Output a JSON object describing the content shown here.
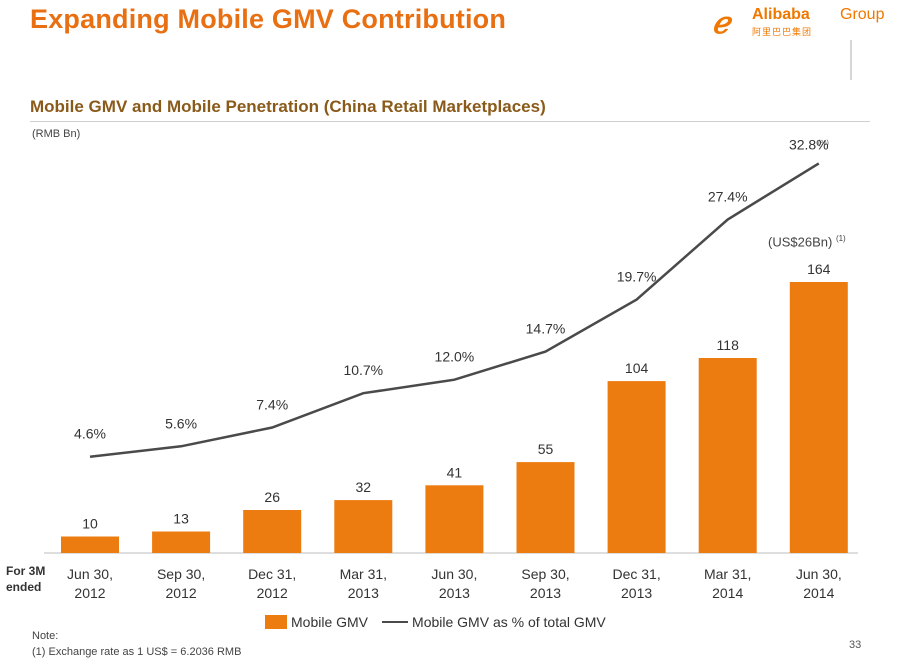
{
  "slide": {
    "title": "Expanding Mobile GMV Contribution",
    "page_number": "33",
    "logo_name": "Alibaba",
    "logo_group": "Group",
    "logo_sub": "阿里巴巴集团"
  },
  "chart_data": {
    "type": "bar",
    "title": "Mobile GMV and Mobile Penetration (China Retail Marketplaces)",
    "ylabel": "(RMB Bn)",
    "y2label": "(%)",
    "x_prefix": "For 3M ended",
    "categories": [
      [
        "Jun 30,",
        "2012"
      ],
      [
        "Sep 30,",
        "2012"
      ],
      [
        "Dec 31,",
        "2012"
      ],
      [
        "Mar 31,",
        "2013"
      ],
      [
        "Jun 30,",
        "2013"
      ],
      [
        "Sep 30,",
        "2013"
      ],
      [
        "Dec 31,",
        "2013"
      ],
      [
        "Mar 31,",
        "2014"
      ],
      [
        "Jun 30,",
        "2014"
      ]
    ],
    "series": [
      {
        "name": "Mobile GMV",
        "type": "bar",
        "values": [
          10,
          13,
          26,
          32,
          41,
          55,
          104,
          118,
          164
        ],
        "color": "#ec7c10"
      },
      {
        "name": "Mobile GMV as % of total GMV",
        "type": "line",
        "values": [
          4.6,
          5.6,
          7.4,
          10.7,
          12.0,
          14.7,
          19.7,
          27.4,
          32.8
        ],
        "labels": [
          "4.6%",
          "5.6%",
          "7.4%",
          "10.7%",
          "12.0%",
          "14.7%",
          "19.7%",
          "27.4%",
          "32.8%"
        ],
        "color": "#4a4a4a"
      }
    ],
    "annotation": {
      "text": "(US$26Bn)",
      "footnote_ref": "(1)"
    },
    "legend_position": "bottom",
    "grid": false
  },
  "footnotes": {
    "header": "Note:",
    "items": [
      "(1)  Exchange rate as 1 US$ = 6.2036 RMB"
    ]
  }
}
